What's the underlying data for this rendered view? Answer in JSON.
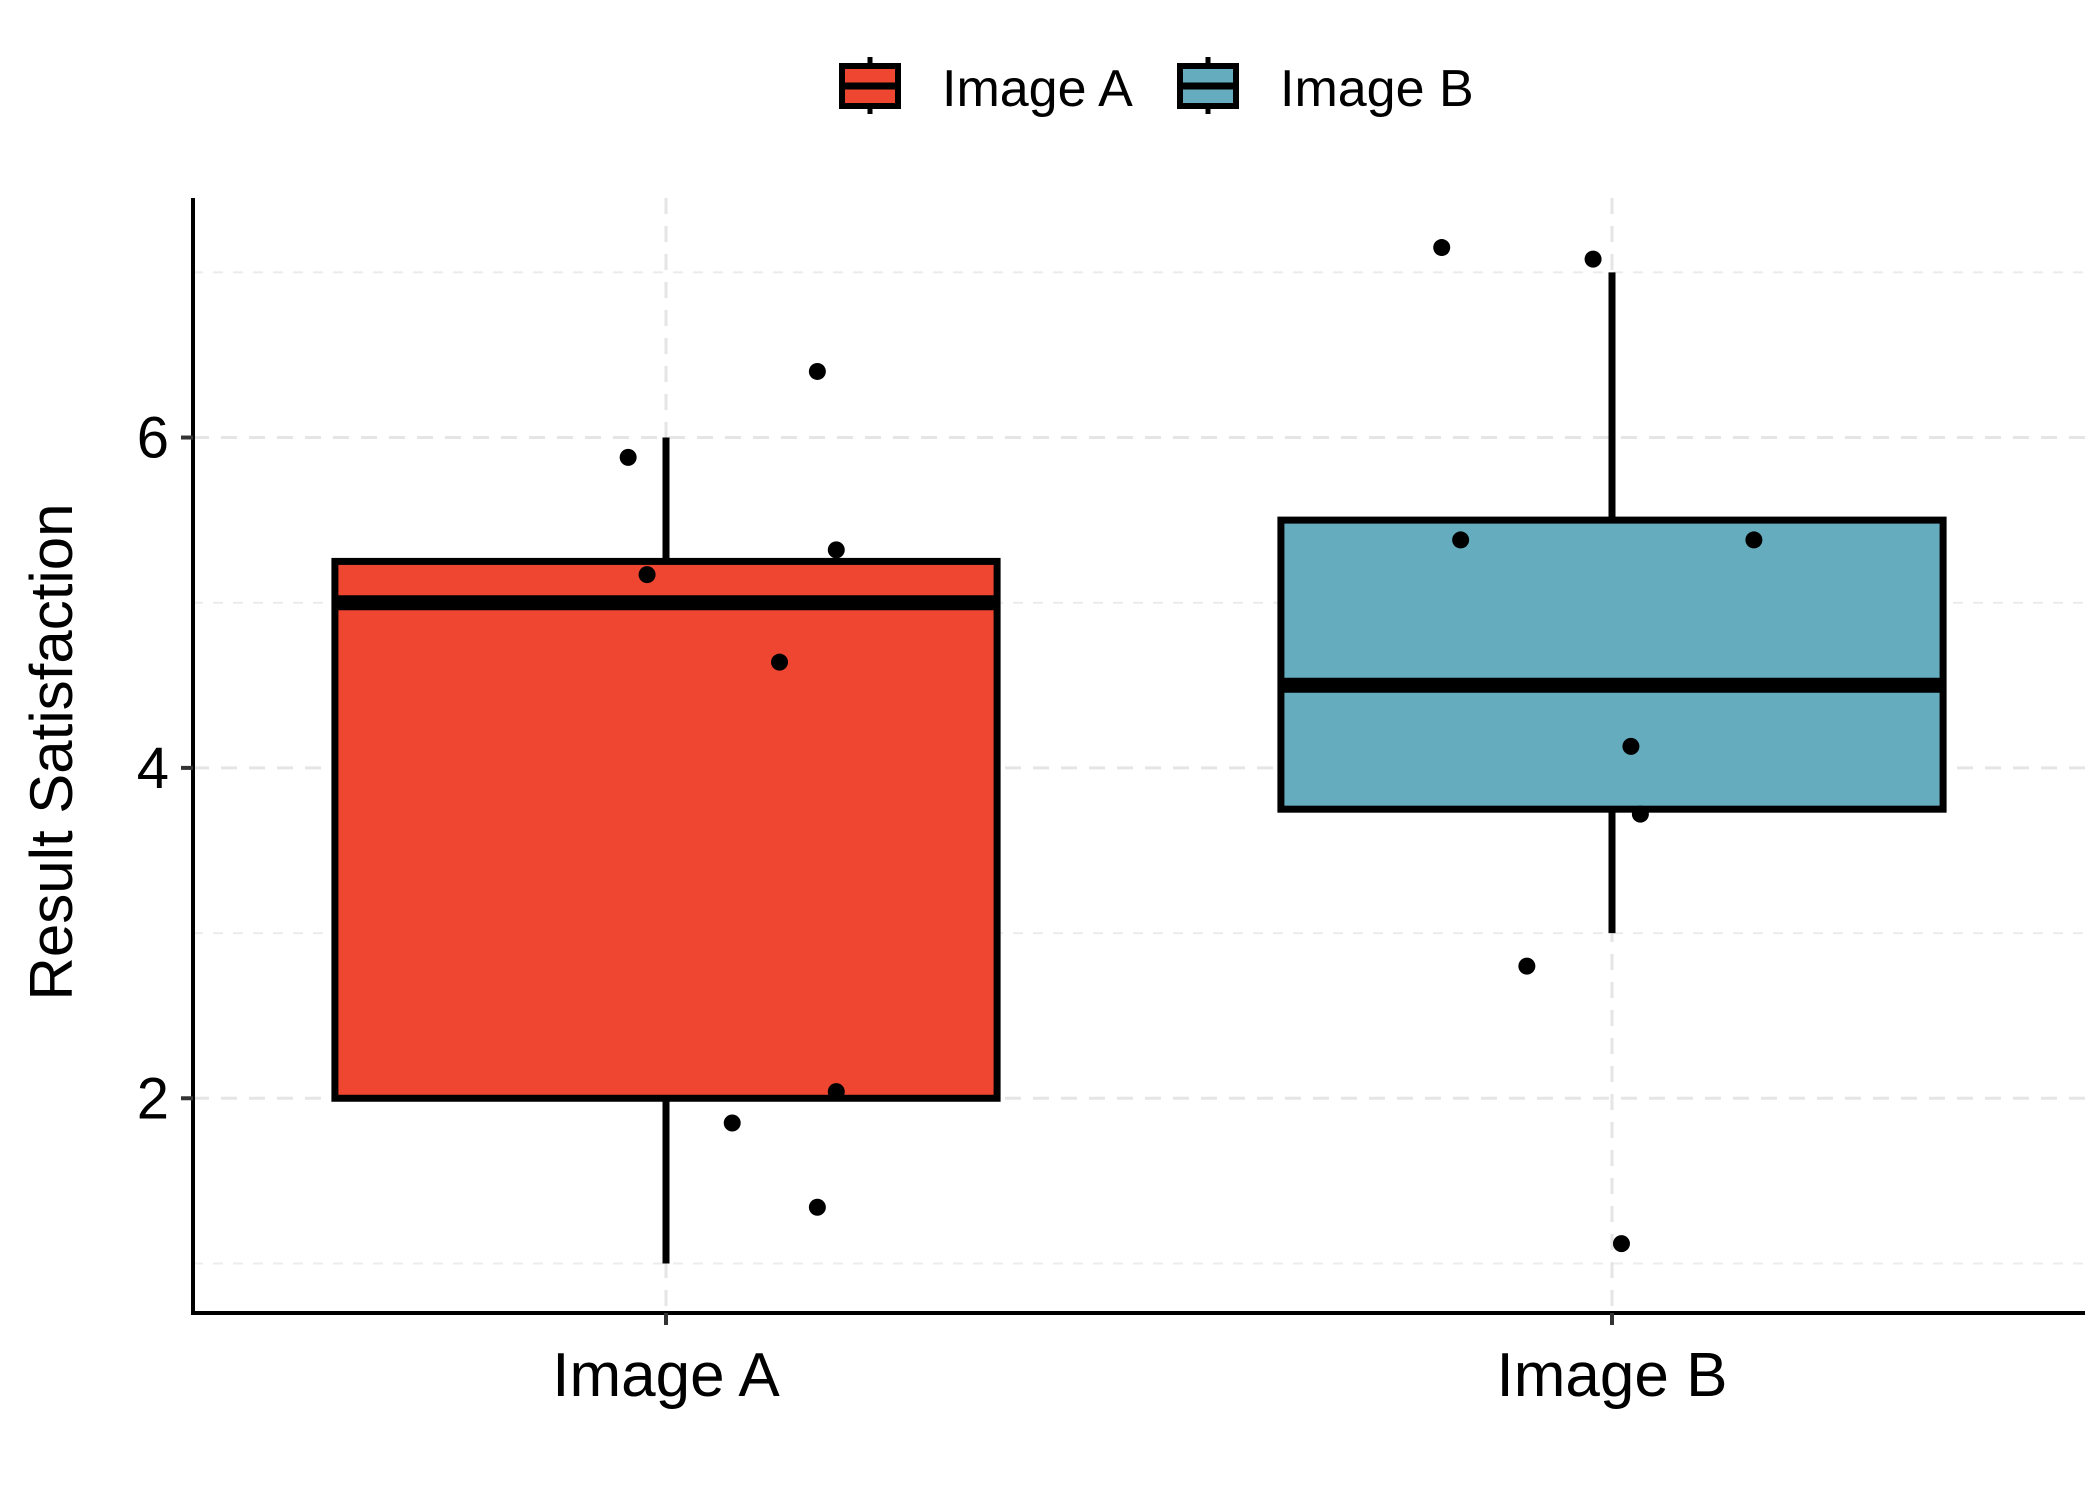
{
  "chart_data": {
    "type": "boxplot",
    "categories": [
      "Image A",
      "Image B"
    ],
    "ylabel": "Result Satisfaction",
    "xlabel": "",
    "title": "",
    "ylim": [
      0.7,
      7.45
    ],
    "yticks": [
      2,
      4,
      6
    ],
    "grid": {
      "major_y": true,
      "minor_y": true,
      "major_x": true,
      "style": "dashed"
    },
    "legend": {
      "position": "top",
      "entries": [
        {
          "label": "Image A",
          "color": "#EF4631"
        },
        {
          "label": "Image B",
          "color": "#65ACBF"
        }
      ]
    },
    "boxes": [
      {
        "name": "Image A",
        "color": "#EF4631",
        "whisker_low": 1.0,
        "q1": 2.0,
        "median": 5.0,
        "q3": 5.25,
        "whisker_high": 6.0
      },
      {
        "name": "Image B",
        "color": "#65ACBF",
        "whisker_low": 3.0,
        "q1": 3.75,
        "median": 4.5,
        "q3": 5.5,
        "whisker_high": 7.0
      }
    ],
    "points": [
      {
        "group": "Image A",
        "offset": -0.04,
        "y": 5.88
      },
      {
        "group": "Image A",
        "offset": 0.16,
        "y": 6.4
      },
      {
        "group": "Image A",
        "offset": -0.02,
        "y": 5.17
      },
      {
        "group": "Image A",
        "offset": 0.18,
        "y": 5.32
      },
      {
        "group": "Image A",
        "offset": 0.12,
        "y": 4.64
      },
      {
        "group": "Image A",
        "offset": 0.18,
        "y": 2.04
      },
      {
        "group": "Image A",
        "offset": 0.07,
        "y": 1.85
      },
      {
        "group": "Image A",
        "offset": 0.16,
        "y": 1.34
      },
      {
        "group": "Image B",
        "offset": -0.18,
        "y": 7.15
      },
      {
        "group": "Image B",
        "offset": -0.02,
        "y": 7.08
      },
      {
        "group": "Image B",
        "offset": -0.16,
        "y": 5.38
      },
      {
        "group": "Image B",
        "offset": 0.15,
        "y": 5.38
      },
      {
        "group": "Image B",
        "offset": 0.02,
        "y": 4.13
      },
      {
        "group": "Image B",
        "offset": 0.03,
        "y": 3.72
      },
      {
        "group": "Image B",
        "offset": -0.09,
        "y": 2.8
      },
      {
        "group": "Image B",
        "offset": 0.01,
        "y": 1.12
      }
    ]
  }
}
